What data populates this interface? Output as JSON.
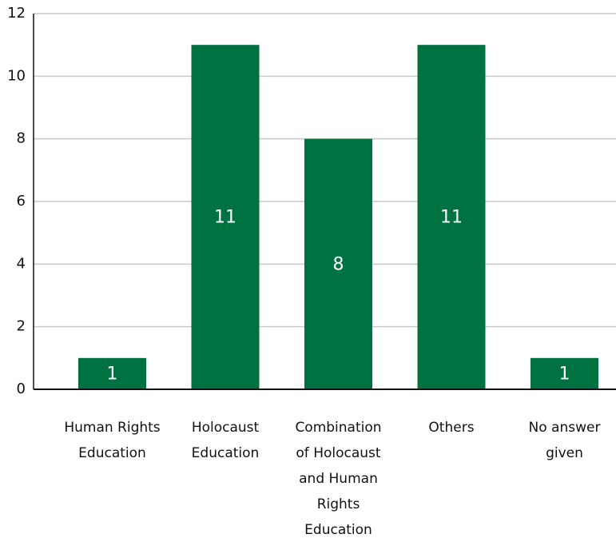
{
  "chart_data": {
    "type": "bar",
    "categories": [
      "Human Rights Education",
      "Holocaust Education",
      "Combination of Holocaust and Human Rights Education",
      "Others",
      "No answer given"
    ],
    "values": [
      1,
      11,
      8,
      11,
      1
    ],
    "color": "#007140",
    "ylim": [
      0,
      12
    ],
    "yticks": [
      0,
      2,
      4,
      6,
      8,
      10,
      12
    ],
    "grid": true
  }
}
